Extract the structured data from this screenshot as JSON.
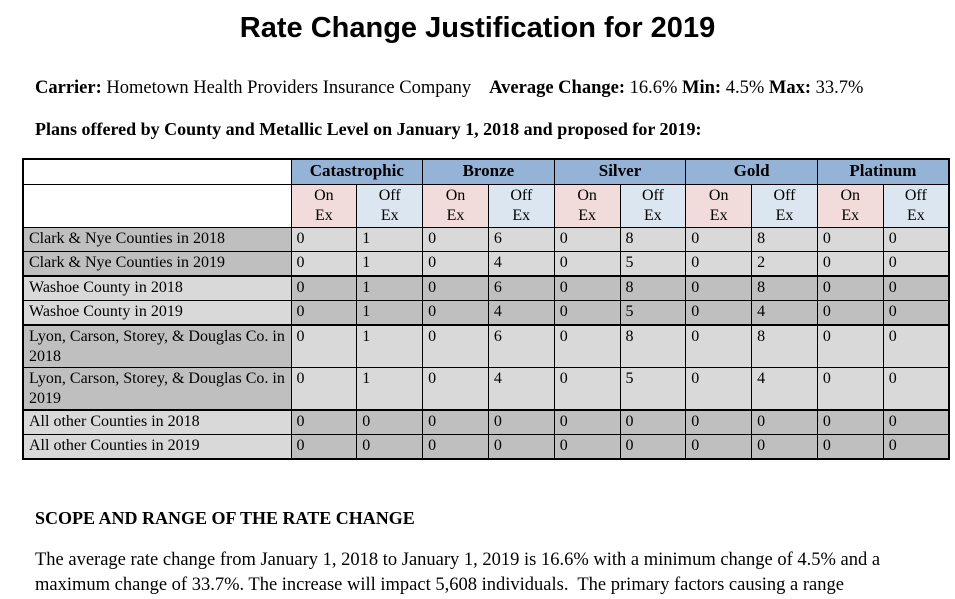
{
  "page": {
    "title": "Rate Change Justification for 2019"
  },
  "meta": {
    "carrier_label": "Carrier:",
    "carrier_value": "Hometown Health Providers Insurance Company",
    "average_change_label": "Average Change:",
    "average_change_value": "16.6%",
    "min_label": "Min:",
    "min_value": "4.5%",
    "max_label": "Max:",
    "max_value": "33.7%"
  },
  "table": {
    "caption": "Plans offered by County and Metallic Level on January 1, 2018 and proposed for 2019:",
    "metal_headers": [
      "Catastrophic",
      "Bronze",
      "Silver",
      "Gold",
      "Platinum"
    ],
    "exchange_headers": [
      "On\nEx",
      "Off\nEx"
    ],
    "rows": [
      {
        "label": "Clark & Nye Counties in 2018",
        "values": [
          "0",
          "1",
          "0",
          "6",
          "0",
          "8",
          "0",
          "8",
          "0",
          "0"
        ],
        "shade": "A"
      },
      {
        "label": "Clark & Nye Counties in 2019",
        "values": [
          "0",
          "1",
          "0",
          "4",
          "0",
          "5",
          "0",
          "2",
          "0",
          "0"
        ],
        "shade": "A"
      },
      {
        "label": "Washoe County in 2018",
        "values": [
          "0",
          "1",
          "0",
          "6",
          "0",
          "8",
          "0",
          "8",
          "0",
          "0"
        ],
        "shade": "B"
      },
      {
        "label": "Washoe County in 2019",
        "values": [
          "0",
          "1",
          "0",
          "4",
          "0",
          "5",
          "0",
          "4",
          "0",
          "0"
        ],
        "shade": "B"
      },
      {
        "label": "Lyon, Carson, Storey, & Douglas Co. in 2018",
        "values": [
          "0",
          "1",
          "0",
          "6",
          "0",
          "8",
          "0",
          "8",
          "0",
          "0"
        ],
        "shade": "A"
      },
      {
        "label": "Lyon, Carson, Storey, & Douglas Co. in 2019",
        "values": [
          "0",
          "1",
          "0",
          "4",
          "0",
          "5",
          "0",
          "4",
          "0",
          "0"
        ],
        "shade": "A"
      },
      {
        "label": "All other Counties in 2018",
        "values": [
          "0",
          "0",
          "0",
          "0",
          "0",
          "0",
          "0",
          "0",
          "0",
          "0"
        ],
        "shade": "B"
      },
      {
        "label": "All other Counties in 2019",
        "values": [
          "0",
          "0",
          "0",
          "0",
          "0",
          "0",
          "0",
          "0",
          "0",
          "0"
        ],
        "shade": "B"
      }
    ]
  },
  "scope_section": {
    "heading": "SCOPE AND RANGE OF THE RATE CHANGE",
    "paragraph": "The average rate change from January 1, 2018 to January 1, 2019 is 16.6% with a minimum change of 4.5% and a maximum change of 33.7%. The increase will impact 5,608 individuals.  The primary factors causing a range"
  },
  "colors": {
    "metal_header_bg": "#95B3D7",
    "on_ex_bg": "#F2DCDB",
    "off_ex_bg": "#DCE6F1",
    "row_gray_dark": "#BFBFBF",
    "row_gray_light": "#D9D9D9",
    "border": "#000000",
    "text": "#000000"
  }
}
